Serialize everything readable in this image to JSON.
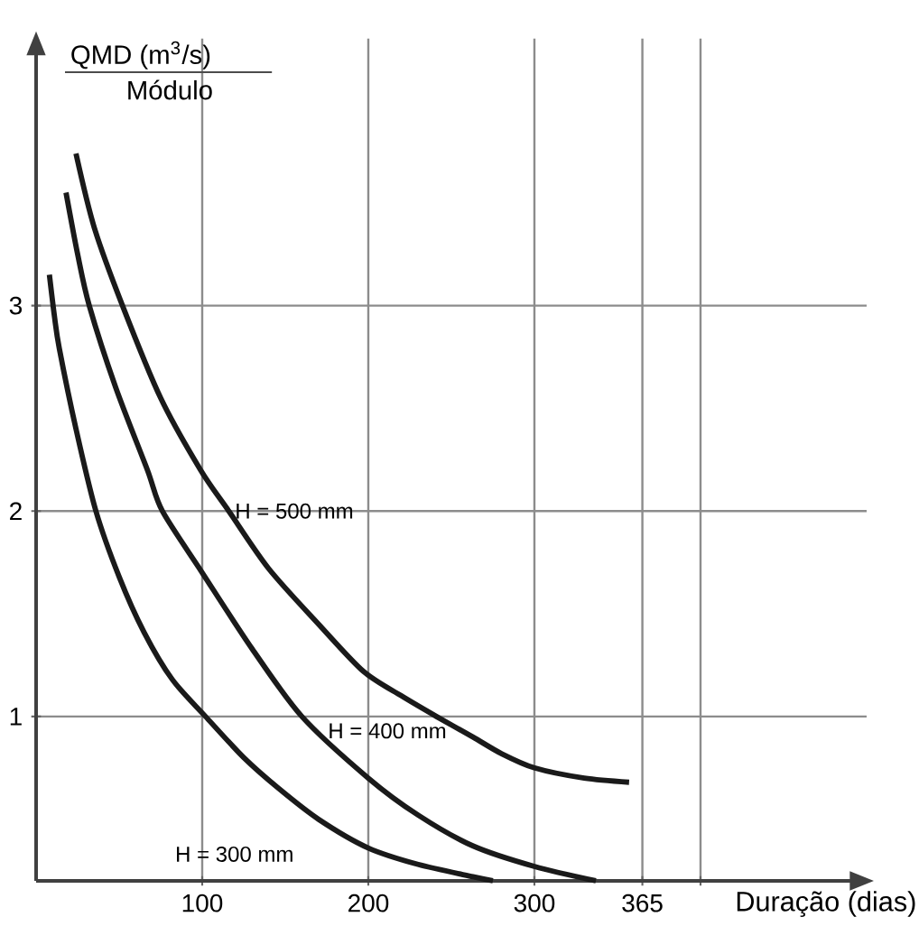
{
  "chart_data": {
    "type": "line",
    "ylabel": "QMD (m$^{3}$/s)",
    "annotations": [
      "Módulo"
    ],
    "xlabel": "Duração (dias)",
    "xlim": [
      0,
      500
    ],
    "ylim": [
      0.2,
      4.3
    ],
    "xticks": [
      100,
      200,
      300,
      365,
      {
        "value": 400,
        "label": null
      }
    ],
    "yticks": [
      1,
      2,
      3
    ],
    "grid": true,
    "legend": false,
    "marker": "none",
    "line_style": "solid",
    "series": [
      {
        "name": "H = 500 mm",
        "color": "#1a1a1a",
        "x": [
          24,
          35,
          52,
          75,
          99,
          116,
          140,
          170,
          197,
          220,
          241,
          263,
          280,
          300,
          330,
          357
        ],
        "values": [
          3.74,
          3.38,
          3.0,
          2.55,
          2.2,
          2.0,
          1.72,
          1.45,
          1.22,
          1.1,
          1.0,
          0.9,
          0.82,
          0.75,
          0.7,
          0.68
        ]
      },
      {
        "name": "H = 400 mm",
        "color": "#1a1a1a",
        "x": [
          18,
          25,
          32,
          48,
          67,
          76,
          100,
          130,
          160,
          200,
          230,
          263,
          300,
          337
        ],
        "values": [
          3.55,
          3.25,
          3.0,
          2.6,
          2.2,
          2.0,
          1.7,
          1.33,
          1.0,
          0.7,
          0.52,
          0.37,
          0.27,
          0.2
        ]
      },
      {
        "name": "H = 300 mm",
        "color": "#1a1a1a",
        "x": [
          8,
          11,
          14,
          24,
          36,
          50,
          65,
          82,
          102,
          125,
          146,
          170,
          200,
          230,
          263,
          275
        ],
        "values": [
          3.15,
          2.95,
          2.79,
          2.4,
          2.0,
          1.68,
          1.41,
          1.18,
          1.0,
          0.8,
          0.65,
          0.5,
          0.36,
          0.28,
          0.22,
          0.2
        ]
      }
    ]
  }
}
